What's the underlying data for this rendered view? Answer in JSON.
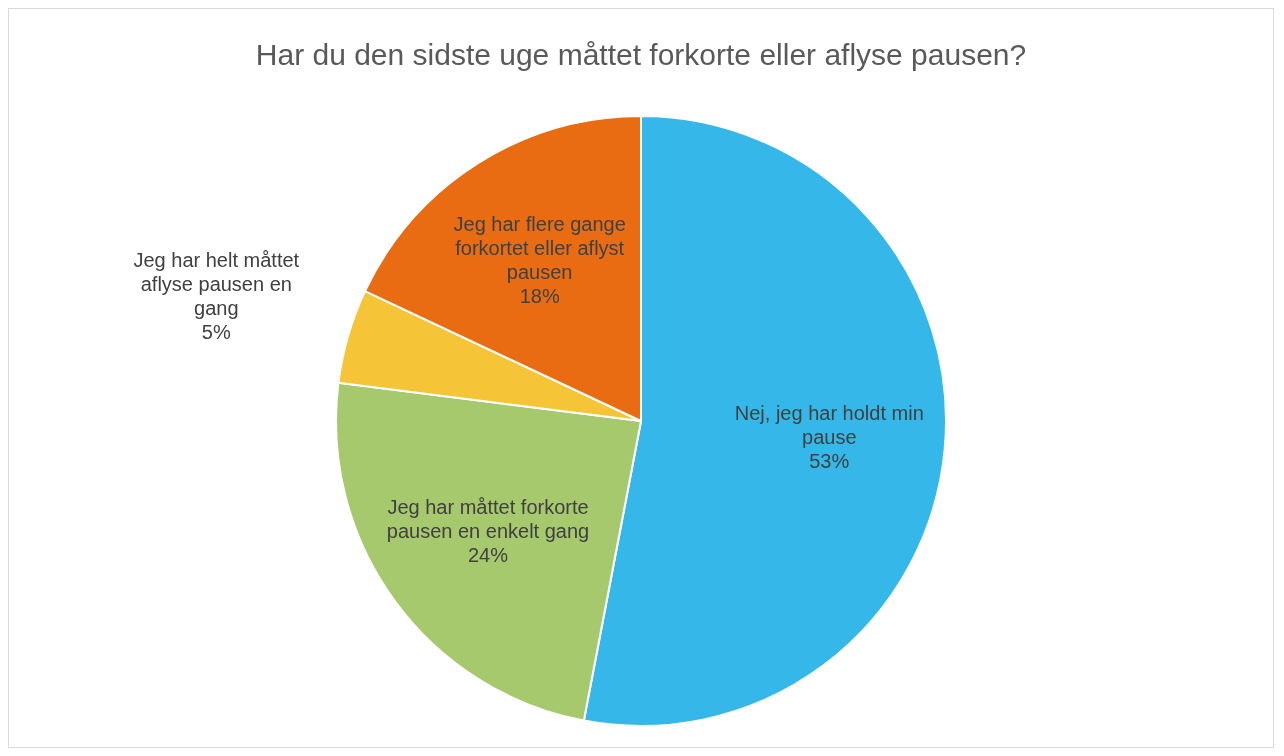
{
  "chart_data": {
    "type": "pie",
    "title": "Har du den sidste uge måttet forkorte eller aflyse pausen?",
    "categories": [
      "Nej, jeg har holdt min pause",
      "Jeg har måttet forkorte pausen en enkelt gang",
      "Jeg har helt måttet aflyse pausen en gang",
      "Jeg har flere gange forkortet eller aflyst pausen"
    ],
    "values": [
      53,
      24,
      5,
      18
    ],
    "value_labels": [
      "53%",
      "24%",
      "5%",
      "18%"
    ],
    "colors": [
      "#35b8e9",
      "#a7c96e",
      "#f5c437",
      "#e96c13"
    ],
    "legend": false
  }
}
